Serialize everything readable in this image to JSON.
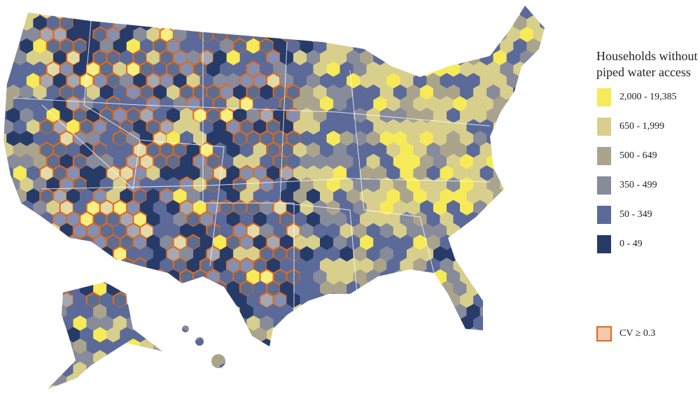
{
  "legend": {
    "title": [
      "Households without",
      "piped water access"
    ],
    "items": [
      {
        "label": "2,000 - 19,385",
        "color": "#f6ea58"
      },
      {
        "label": "650 - 1,999",
        "color": "#d8cf8c"
      },
      {
        "label": "500 - 649",
        "color": "#aaa48d"
      },
      {
        "label": "350 - 499",
        "color": "#878b9a"
      },
      {
        "label": "50 - 349",
        "color": "#5b6a98"
      },
      {
        "label": "0 - 49",
        "color": "#273b69"
      }
    ]
  },
  "cv": {
    "label": "CV ≥ 0.3",
    "fill": "#f2c8ae",
    "stroke": "#e06a1c"
  }
}
